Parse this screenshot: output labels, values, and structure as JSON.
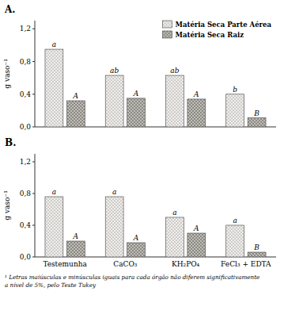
{
  "chart_data": [
    {
      "type": "bar",
      "title": "A.",
      "categories": [
        null,
        null,
        null,
        null
      ],
      "y_label": "g vaso⁻¹",
      "series": [
        {
          "name": "Matéria Seca Parte Aérea",
          "color": "#f0eeeb",
          "values": [
            0.95,
            0.63,
            0.63,
            0.4
          ],
          "annotations": [
            "a",
            "ab",
            "ab",
            "b"
          ]
        },
        {
          "name": "Matéria Seca Raiz",
          "color": "#c0bdb5",
          "values": [
            0.32,
            0.35,
            0.34,
            0.11
          ],
          "annotations": [
            "A",
            "A",
            "A",
            "B"
          ]
        }
      ],
      "ylim": [
        0,
        1.3
      ],
      "yticks": [
        {
          "value": 0.0,
          "label": "0,0"
        },
        {
          "value": 0.4,
          "label": "0,4"
        },
        {
          "value": 0.8,
          "label": "0,8"
        },
        {
          "value": 1.2,
          "label": "1,2"
        }
      ],
      "grid": false,
      "legend": "upper right"
    },
    {
      "type": "bar",
      "title": "B.",
      "categories": [
        "Testemunha",
        "CaCO₃",
        "KH₂PO₄",
        "FeCl₃ + EDTA"
      ],
      "y_label": "g vaso⁻¹",
      "series": [
        {
          "color": "#f0eeeb",
          "values": [
            0.76,
            0.76,
            0.5,
            0.4
          ],
          "annotations": [
            "a",
            "a",
            "a",
            "a"
          ]
        },
        {
          "color": "#c0bdb5",
          "values": [
            0.2,
            0.18,
            0.3,
            0.06
          ],
          "annotations": [
            "A",
            "A",
            "A",
            "B"
          ]
        }
      ],
      "ylim": [
        0,
        1.3
      ],
      "yticks": [
        {
          "value": 0.0,
          "label": "0,0"
        },
        {
          "value": 0.4,
          "label": "0,4"
        },
        {
          "value": 0.8,
          "label": "0,8"
        },
        {
          "value": 1.2,
          "label": "1,2"
        }
      ],
      "grid": false,
      "annotations": [
        "¹ Letras maiúsculas e minúsculas iguais para cada órgão não diferem significativamente\na nível de 5%, pelo Teste Tukey"
      ]
    }
  ]
}
